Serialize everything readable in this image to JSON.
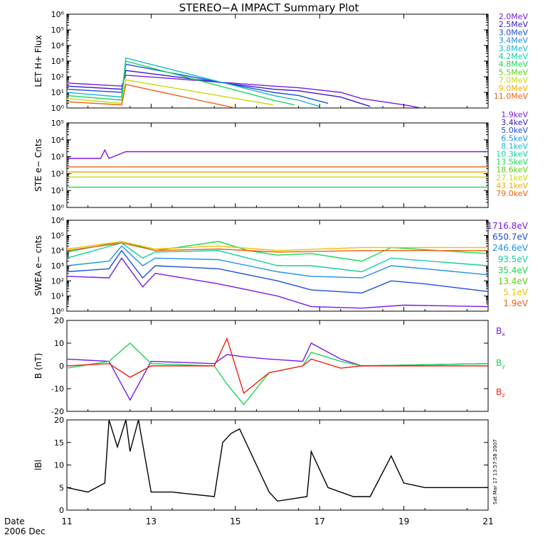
{
  "title": "STEREO−A IMPACT Summary Plot",
  "date_label": "Date",
  "date_sub": "2006 Dec",
  "timestamp": "Sat Mar 17 13:57:58 2007",
  "x_ticks": [
    "11",
    "13",
    "15",
    "17",
    "19",
    "21"
  ],
  "chart_data": [
    {
      "type": "line",
      "ylabel": "LET H+ Flux",
      "yscale": "log",
      "ylim_exp": [
        0,
        6
      ],
      "legend": [
        {
          "label": "2.0MeV",
          "color": "#7a1ae0"
        },
        {
          "label": "2.5MeV",
          "color": "#3a1ac8"
        },
        {
          "label": "3.0MeV",
          "color": "#1d4fd8"
        },
        {
          "label": "3.4MeV",
          "color": "#1e90e8"
        },
        {
          "label": "3.8MeV",
          "color": "#18b8d0"
        },
        {
          "label": "4.2MeV",
          "color": "#10d0a0"
        },
        {
          "label": "4.8MeV",
          "color": "#18d850"
        },
        {
          "label": "5.5MeV",
          "color": "#5ad010"
        },
        {
          "label": "7.0MeV",
          "color": "#c8d810"
        },
        {
          "label": "9.0MeV",
          "color": "#f0b000"
        },
        {
          "label": "11.0MeV",
          "color": "#f06010"
        }
      ],
      "series_approx": [
        {
          "name": "2.0MeV",
          "x": [
            11.0,
            12.3,
            12.4,
            15.9,
            16.5,
            17.5,
            18.0,
            18.5,
            19.0,
            19.4
          ],
          "log10y": [
            1.6,
            1.4,
            2.1,
            1.4,
            1.3,
            1.0,
            0.6,
            0.4,
            0.2,
            0.0
          ]
        },
        {
          "name": "2.5MeV",
          "x": [
            11.0,
            12.3,
            12.4,
            15.9,
            16.5,
            17.5,
            18.2
          ],
          "log10y": [
            1.4,
            1.2,
            2.4,
            1.2,
            1.1,
            0.7,
            0.1
          ]
        },
        {
          "name": "3.0MeV",
          "x": [
            11.0,
            12.3,
            12.4,
            15.9,
            16.5,
            17.2
          ],
          "log10y": [
            1.2,
            1.0,
            2.8,
            1.0,
            0.8,
            0.3
          ]
        },
        {
          "name": "3.8MeV",
          "x": [
            11.0,
            12.3,
            12.4,
            15.9,
            16.5,
            17.0
          ],
          "log10y": [
            1.0,
            0.7,
            3.2,
            0.8,
            0.5,
            0.1
          ]
        },
        {
          "name": "4.8MeV",
          "x": [
            11.0,
            12.3,
            12.4,
            15.9,
            16.4
          ],
          "log10y": [
            0.8,
            0.5,
            3.0,
            0.5,
            0.2
          ]
        },
        {
          "name": "7.0MeV",
          "x": [
            11.0,
            12.3,
            12.4,
            15.9
          ],
          "log10y": [
            0.6,
            0.3,
            1.8,
            0.2
          ]
        },
        {
          "name": "11.0MeV",
          "x": [
            11.0,
            12.3,
            12.4,
            15.0
          ],
          "log10y": [
            0.4,
            0.2,
            1.5,
            0.0
          ]
        }
      ]
    },
    {
      "type": "line",
      "ylabel": "STE e− Cnts",
      "yscale": "log",
      "ylim_exp": [
        0,
        5
      ],
      "legend": [
        {
          "label": "1.9keV",
          "color": "#7a1ae0"
        },
        {
          "label": "3.4keV",
          "color": "#3a1ac8"
        },
        {
          "label": "5.0keV",
          "color": "#1d4fd8"
        },
        {
          "label": "6.5keV",
          "color": "#1e90e8"
        },
        {
          "label": "8.1keV",
          "color": "#18b8d0"
        },
        {
          "label": "10.3keV",
          "color": "#10d0a0"
        },
        {
          "label": "13.5keV",
          "color": "#18d850"
        },
        {
          "label": "18.6keV",
          "color": "#5ad010"
        },
        {
          "label": "27.1keV",
          "color": "#c8d810"
        },
        {
          "label": "43.1keV",
          "color": "#f0b000"
        },
        {
          "label": "79.0keV",
          "color": "#f06010"
        }
      ],
      "series_approx": [
        {
          "name": "1.9keV",
          "x": [
            11.0,
            11.8,
            11.9,
            12.0,
            12.4,
            12.5,
            21.0
          ],
          "log10y": [
            2.9,
            2.9,
            3.4,
            2.9,
            3.3,
            3.3,
            3.3
          ]
        },
        {
          "name": "79.0keV",
          "x": [
            11.0,
            21.0
          ],
          "log10y": [
            2.4,
            2.4
          ]
        },
        {
          "name": "43.1keV",
          "x": [
            11.0,
            21.0
          ],
          "log10y": [
            2.1,
            2.1
          ]
        },
        {
          "name": "27.1keV",
          "x": [
            11.0,
            21.0
          ],
          "log10y": [
            1.8,
            1.8
          ]
        },
        {
          "name": "13.5keV",
          "x": [
            11.0,
            21.0
          ],
          "log10y": [
            1.2,
            1.2
          ]
        }
      ]
    },
    {
      "type": "line",
      "ylabel": "SWEA e− cnts",
      "yscale": "log",
      "ylim_exp": [
        0,
        6
      ],
      "legend": [
        {
          "label": "1716.8eV",
          "color": "#7a1ae0"
        },
        {
          "label": "650.7eV",
          "color": "#1d4fd8"
        },
        {
          "label": "246.6eV",
          "color": "#1e90e8"
        },
        {
          "label": "93.5eV",
          "color": "#10d0a0"
        },
        {
          "label": "35.4eV",
          "color": "#18d850"
        },
        {
          "label": "13.4eV",
          "color": "#5ad010"
        },
        {
          "label": "5.1eV",
          "color": "#f0c000"
        },
        {
          "label": "1.9eV",
          "color": "#f06010"
        }
      ],
      "series_approx": [
        {
          "name": "1716.8eV",
          "x": [
            11.0,
            12.0,
            12.3,
            12.8,
            13.1,
            14.6,
            15.3,
            16.0,
            16.8,
            18.0,
            19.0,
            21.0
          ],
          "log10y": [
            2.3,
            2.2,
            3.5,
            1.6,
            2.5,
            1.8,
            1.4,
            1.0,
            0.3,
            0.2,
            0.4,
            0.3
          ]
        },
        {
          "name": "650.7eV",
          "x": [
            11.0,
            12.0,
            12.3,
            12.8,
            13.1,
            14.6,
            15.3,
            16.0,
            16.8,
            18.0,
            18.7,
            19.5,
            21.0
          ],
          "log10y": [
            2.6,
            2.8,
            4.0,
            2.2,
            3.0,
            2.8,
            2.4,
            2.0,
            1.4,
            1.2,
            2.0,
            1.8,
            1.3
          ]
        },
        {
          "name": "246.6eV",
          "x": [
            11.0,
            12.0,
            12.3,
            12.8,
            13.1,
            14.6,
            15.3,
            16.0,
            16.8,
            18.0,
            18.7,
            19.5,
            21.0
          ],
          "log10y": [
            3.0,
            3.3,
            4.3,
            3.0,
            3.5,
            3.4,
            3.0,
            2.6,
            2.3,
            2.2,
            3.0,
            2.8,
            2.4
          ]
        },
        {
          "name": "93.5eV",
          "x": [
            11.0,
            12.3,
            12.8,
            13.1,
            14.6,
            15.3,
            16.0,
            16.8,
            18.0,
            18.7,
            21.0
          ],
          "log10y": [
            3.5,
            4.5,
            3.5,
            3.9,
            4.0,
            3.5,
            3.0,
            3.0,
            2.6,
            3.5,
            3.0
          ]
        },
        {
          "name": "35.4eV",
          "x": [
            11.0,
            12.3,
            13.1,
            14.6,
            15.3,
            16.0,
            16.8,
            18.0,
            18.7,
            21.0
          ],
          "log10y": [
            3.9,
            4.6,
            4.0,
            4.6,
            4.0,
            3.7,
            3.8,
            3.3,
            4.2,
            3.8
          ]
        },
        {
          "name": "5.1eV",
          "x": [
            11.0,
            12.3,
            13.1,
            14.6,
            16.0,
            18.0,
            21.0
          ],
          "log10y": [
            4.1,
            4.6,
            4.1,
            4.3,
            4.0,
            4.2,
            4.2
          ]
        },
        {
          "name": "1.9eV",
          "x": [
            11.0,
            12.3,
            13.1,
            14.6,
            16.0,
            18.0,
            21.0
          ],
          "log10y": [
            4.0,
            4.5,
            4.0,
            4.1,
            3.9,
            4.0,
            4.0
          ]
        }
      ]
    },
    {
      "type": "line",
      "ylabel": "B (nT)",
      "yscale": "linear",
      "ylim": [
        -20,
        20
      ],
      "yticks": [
        "20",
        "10",
        "0",
        "-10",
        "-20"
      ],
      "legend": [
        {
          "label": "B",
          "sub": "x",
          "color": "#7a1ae0"
        },
        {
          "label": "B",
          "sub": "y",
          "color": "#18d850"
        },
        {
          "label": "B",
          "sub": "z",
          "color": "#f02010"
        }
      ],
      "series_approx": [
        {
          "name": "Bx",
          "x": [
            11.0,
            12.0,
            12.5,
            13.0,
            14.5,
            14.8,
            15.2,
            15.8,
            16.6,
            16.8,
            17.5,
            18.0,
            21.0
          ],
          "y": [
            3,
            2,
            -15,
            2,
            1,
            5,
            4,
            3,
            2,
            10,
            3,
            0,
            1
          ]
        },
        {
          "name": "By",
          "x": [
            11.0,
            12.0,
            12.5,
            13.0,
            14.5,
            14.8,
            15.2,
            15.8,
            16.6,
            16.8,
            17.5,
            18.0,
            21.0
          ],
          "y": [
            -1,
            2,
            10,
            1,
            0,
            -8,
            -17,
            -3,
            0,
            6,
            2,
            0,
            1
          ]
        },
        {
          "name": "Bz",
          "x": [
            11.0,
            12.0,
            12.5,
            13.0,
            14.5,
            14.8,
            15.2,
            15.8,
            16.6,
            16.8,
            17.5,
            18.0,
            21.0
          ],
          "y": [
            0,
            1,
            -5,
            0,
            0,
            12,
            -12,
            -3,
            0,
            3,
            -1,
            0,
            0
          ]
        }
      ]
    },
    {
      "type": "line",
      "ylabel": "lBl",
      "yscale": "linear",
      "ylim": [
        0,
        20
      ],
      "yticks": [
        "20",
        "15",
        "10",
        "5",
        "0"
      ],
      "legend": [],
      "series_approx": [
        {
          "name": "|B|",
          "x": [
            11.0,
            11.5,
            11.9,
            12.0,
            12.2,
            12.4,
            12.5,
            12.7,
            13.0,
            13.5,
            14.5,
            14.7,
            14.9,
            15.1,
            15.4,
            15.8,
            16.0,
            16.7,
            16.8,
            17.2,
            17.8,
            18.2,
            18.7,
            19.0,
            19.5,
            20.0,
            21.0
          ],
          "y": [
            5,
            4,
            6,
            20,
            14,
            20,
            13,
            20,
            4,
            4,
            3,
            15,
            17,
            18,
            12,
            4,
            2,
            3,
            13,
            5,
            3,
            3,
            12,
            6,
            5,
            5,
            5
          ]
        }
      ]
    }
  ]
}
